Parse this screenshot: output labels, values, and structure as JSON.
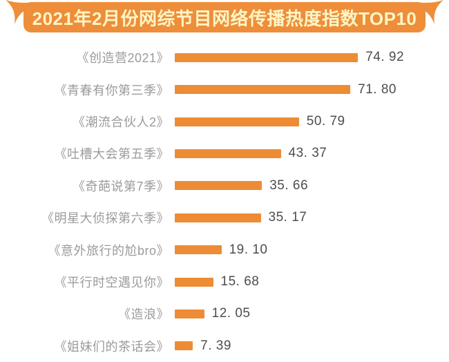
{
  "page": {
    "background_color": "#ffffff"
  },
  "banner": {
    "title": "2021年2月份网综节目网络传播热度指数TOP10",
    "background_color": "#EE8E3A",
    "text_color": "#FCF5C6"
  },
  "chart_data": {
    "type": "bar",
    "orientation": "horizontal",
    "title": "2021年2月份网综节目网络传播热度指数TOP10",
    "xlabel": "",
    "ylabel": "",
    "xlim": [
      0,
      80
    ],
    "grid": false,
    "legend": "none",
    "bar_color": "#ED8C35",
    "label_color": "#9B9B9B",
    "value_color": "#4D4D4D",
    "categories": [
      "《创造营2021》",
      "《青春有你第三季》",
      "《潮流合伙人2》",
      "《吐槽大会第五季》",
      "《奇葩说第7季》",
      "《明星大侦探第六季》",
      "《意外旅行的尬bro》",
      "《平行时空遇见你》",
      "《造浪》",
      "《姐妹们的茶话会》"
    ],
    "values": [
      74.92,
      71.8,
      50.79,
      43.37,
      35.66,
      35.17,
      19.1,
      15.68,
      12.05,
      7.39
    ],
    "value_labels": [
      "74. 92",
      "71. 80",
      "50. 79",
      "43. 37",
      "35. 66",
      "35. 17",
      "19. 10",
      "15. 68",
      "12. 05",
      "7. 39"
    ]
  }
}
